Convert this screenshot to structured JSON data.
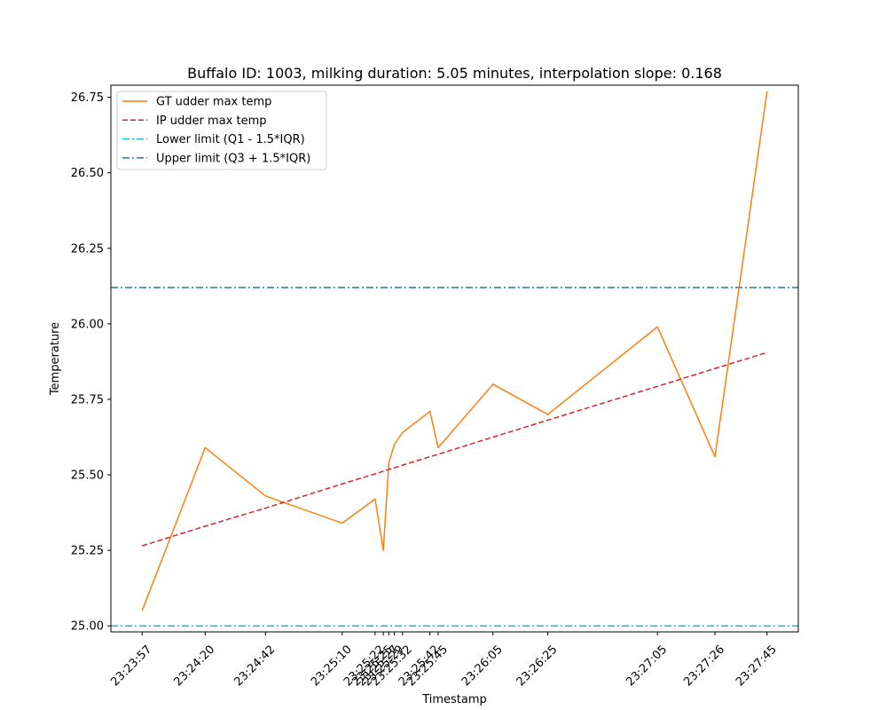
{
  "chart_data": {
    "type": "line",
    "title": "Buffalo ID: 1003, milking duration: 5.05 minutes, interpolation slope: 0.168",
    "xlabel": "Timestamp",
    "ylabel": "Temperature",
    "x_unit": "seconds",
    "x": [
      0,
      23,
      45,
      73,
      85,
      88,
      90,
      92,
      95,
      105,
      108,
      128,
      148,
      188,
      209,
      228
    ],
    "x_tick_labels": [
      "23:23:57",
      "23:24:20",
      "23:24:42",
      "23:25:10",
      "23:25:22",
      "23:25:25",
      "23:25:27",
      "23:25:29",
      "23:25:32",
      "23:25:42",
      "23:25:45",
      "23:26:05",
      "23:26:25",
      "23:27:05",
      "23:27:26",
      "23:27:45"
    ],
    "xlim": [
      -11.4,
      239.4
    ],
    "ylim": [
      24.98,
      26.79
    ],
    "yticks": [
      25.0,
      25.25,
      25.5,
      25.75,
      26.0,
      26.25,
      26.5,
      26.75
    ],
    "ytick_labels": [
      "25.00",
      "25.25",
      "25.50",
      "25.75",
      "26.00",
      "26.25",
      "26.50",
      "26.75"
    ],
    "series": [
      {
        "name": "GT udder max temp",
        "style": "solid",
        "color": "#ff7f0e",
        "values": [
          25.05,
          25.59,
          25.43,
          25.34,
          25.42,
          25.25,
          25.54,
          25.6,
          25.64,
          25.71,
          25.59,
          25.8,
          25.7,
          25.99,
          25.56,
          26.77
        ]
      },
      {
        "name": "IP udder max temp",
        "style": "dashed",
        "color": "#d62728",
        "values": [
          25.265,
          25.33,
          25.39,
          25.47,
          25.503,
          25.512,
          25.518,
          25.523,
          25.532,
          25.56,
          25.568,
          25.625,
          25.681,
          25.793,
          25.852,
          25.905
        ]
      }
    ],
    "hlines": [
      {
        "name": "Lower limit (Q1 - 1.5*IQR)",
        "y": 25.0,
        "style": "dashdot",
        "color": "#17becf"
      },
      {
        "name": "Upper limit (Q3 + 1.5*IQR)",
        "y": 26.12,
        "style": "dashdot",
        "color": "#1f77b4"
      }
    ],
    "legend_position": "top-left",
    "grid": false
  }
}
